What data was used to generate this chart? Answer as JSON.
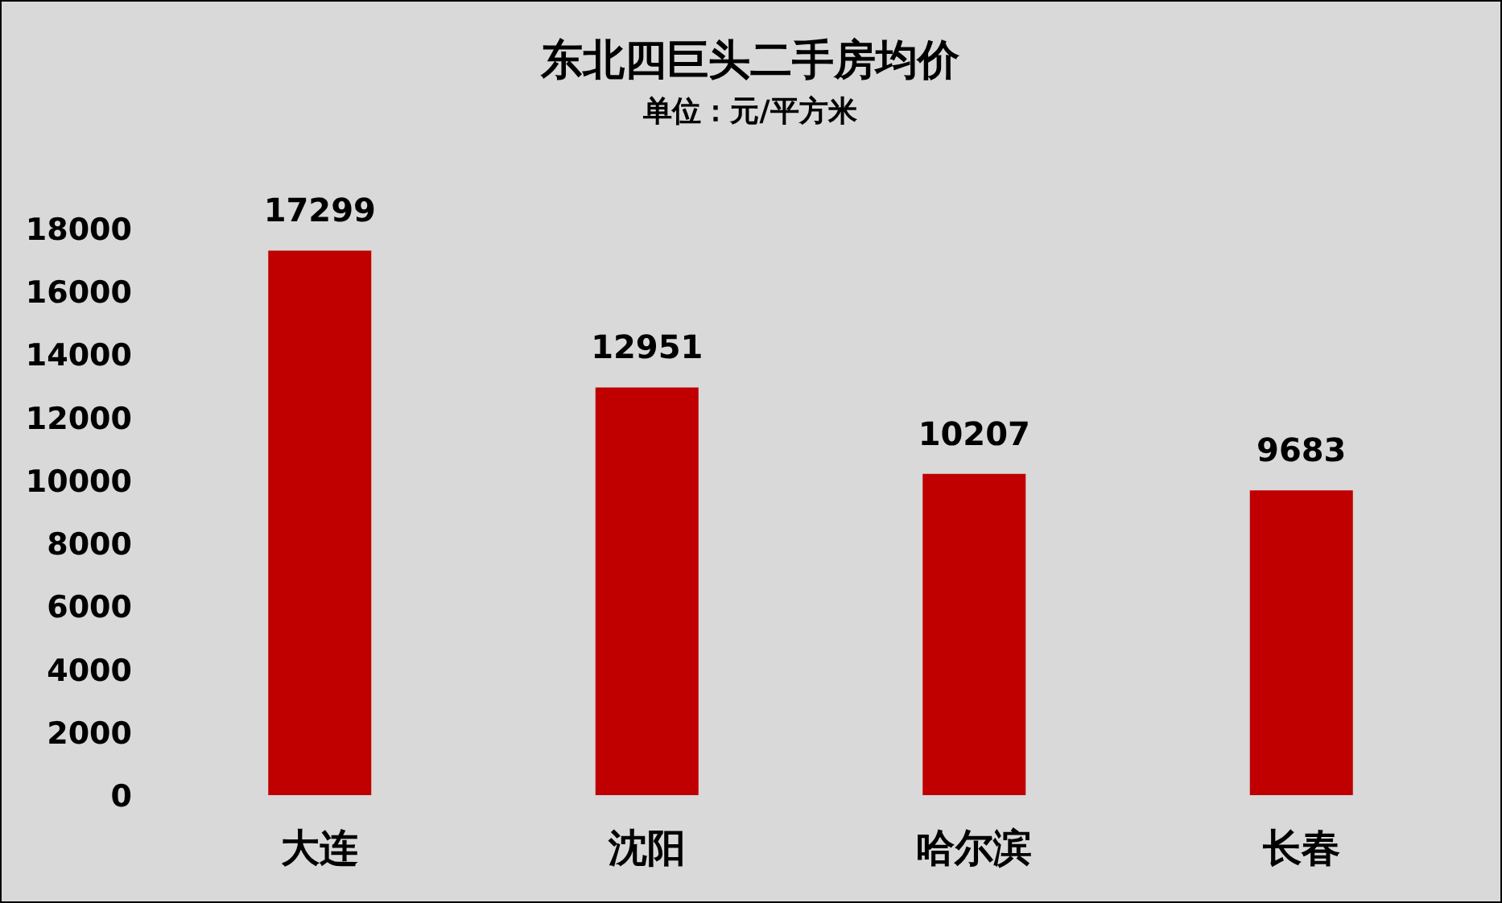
{
  "chart_data": {
    "type": "bar",
    "title": "东北四巨头二手房均价",
    "subtitle": "单位：元/平方米",
    "categories": [
      "大连",
      "沈阳",
      "哈尔滨",
      "长春"
    ],
    "values": [
      17299,
      12951,
      10207,
      9683
    ],
    "color": "#c00000",
    "ylim": [
      0,
      18000
    ],
    "yticks": [
      0,
      2000,
      4000,
      6000,
      8000,
      10000,
      12000,
      14000,
      16000,
      18000
    ],
    "data_labels": true
  }
}
